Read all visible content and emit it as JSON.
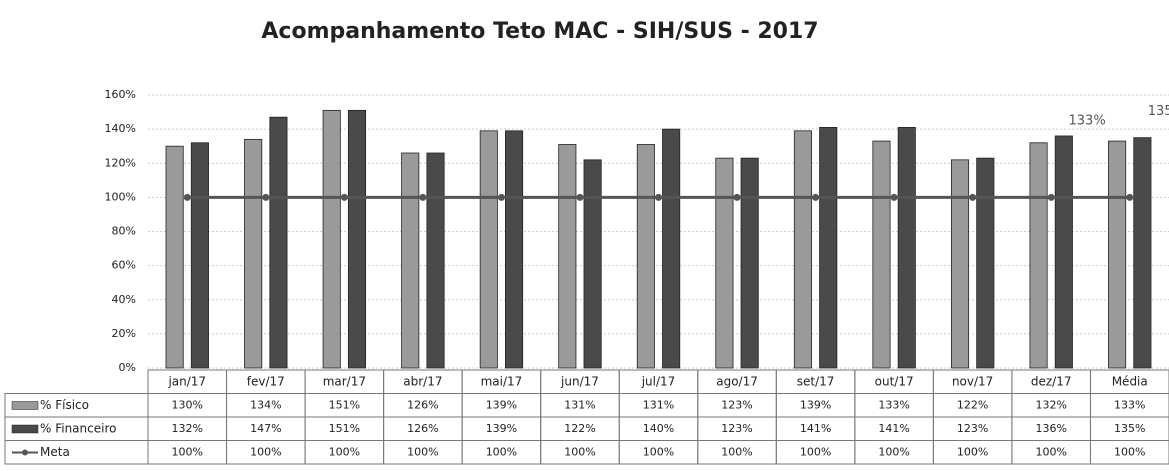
{
  "chart_data": {
    "type": "bar",
    "title": "Acompanhamento Teto MAC - SIH/SUS - 2017",
    "categories": [
      "jan/17",
      "fev/17",
      "mar/17",
      "abr/17",
      "mai/17",
      "jun/17",
      "jul/17",
      "ago/17",
      "set/17",
      "out/17",
      "nov/17",
      "dez/17",
      "Média"
    ],
    "series": [
      {
        "name": "% Físico",
        "color": "#9a9a9a",
        "type": "bar",
        "values": [
          130,
          134,
          151,
          126,
          139,
          131,
          131,
          123,
          139,
          133,
          122,
          132,
          133
        ],
        "value_labels": [
          "130%",
          "134%",
          "151%",
          "126%",
          "139%",
          "131%",
          "131%",
          "123%",
          "139%",
          "133%",
          "122%",
          "132%",
          "133%"
        ]
      },
      {
        "name": "% Financeiro",
        "color": "#4a4a4a",
        "type": "bar",
        "values": [
          132,
          147,
          151,
          126,
          139,
          122,
          140,
          123,
          141,
          141,
          123,
          136,
          135
        ],
        "value_labels": [
          "132%",
          "147%",
          "151%",
          "126%",
          "139%",
          "122%",
          "140%",
          "123%",
          "141%",
          "141%",
          "123%",
          "136%",
          "135%"
        ]
      },
      {
        "name": "Meta",
        "color": "#555555",
        "type": "line",
        "values": [
          100,
          100,
          100,
          100,
          100,
          100,
          100,
          100,
          100,
          100,
          100,
          100,
          100
        ],
        "value_labels": [
          "100%",
          "100%",
          "100%",
          "100%",
          "100%",
          "100%",
          "100%",
          "100%",
          "100%",
          "100%",
          "100%",
          "100%",
          "100%"
        ]
      }
    ],
    "ylim": [
      0,
      160
    ],
    "yticks": [
      {
        "value": 0,
        "label": "0%"
      },
      {
        "value": 20,
        "label": "20%"
      },
      {
        "value": 40,
        "label": "40%"
      },
      {
        "value": 60,
        "label": "60%"
      },
      {
        "value": 80,
        "label": "80%"
      },
      {
        "value": 100,
        "label": "100%"
      },
      {
        "value": 120,
        "label": "120%"
      },
      {
        "value": 140,
        "label": "140%"
      },
      {
        "value": 160,
        "label": "160%"
      }
    ],
    "grid": true
  }
}
